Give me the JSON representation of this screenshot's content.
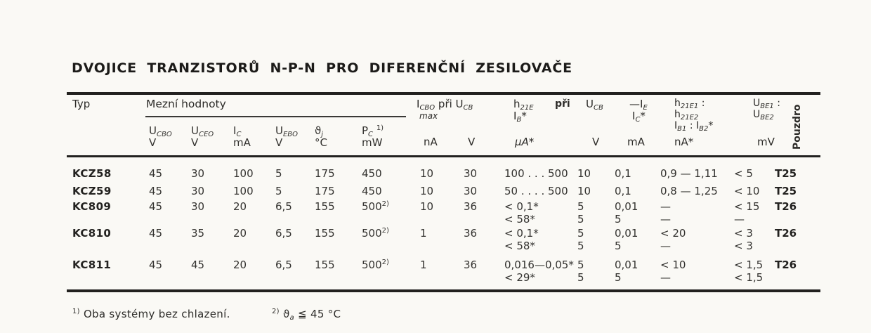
{
  "title": "DVOJICE TRANZISTORŮ N-P-N PRO DIFERENČNÍ ZESILOVAČE",
  "colors": {
    "paper": "#faf9f5",
    "ink": "#33322f",
    "rule": "#22211f"
  },
  "table": {
    "header": {
      "typ": "Typ",
      "mezni_hodnoty": "Mezní hodnoty",
      "limits": [
        {
          "sym": "U~CBO~",
          "unit": "V"
        },
        {
          "sym": "U~CEO~",
          "unit": "V"
        },
        {
          "sym": "I~C~",
          "unit": "mA"
        },
        {
          "sym": "U~EBO~",
          "unit": "V"
        },
        {
          "sym": "ϑ~j~",
          "unit": "°C"
        },
        {
          "sym": "P~C~ ^1)^",
          "unit": "mW"
        }
      ],
      "icbo": {
        "label": "I~CBO~ při U~CB~",
        "sub": "max",
        "unit_na": "nA",
        "unit_v": "V"
      },
      "h21e": {
        "label": "h~21E~",
        "sub": "I~B~*",
        "pri": "při",
        "ucb": "U~CB~",
        "unit_ua": "μA*",
        "unit_v": "V"
      },
      "ie": {
        "label": "—I~E~",
        "sub": "I~C~*",
        "unit": "mA"
      },
      "ratio": {
        "l1": "h~21E1~ :",
        "l2": "h~21E2~",
        "l3": "I~B1~ : I~B2~*",
        "unit": "nA*"
      },
      "ube": {
        "l1": "U~BE1~ :",
        "l2": "U~BE2~",
        "unit": "mV"
      },
      "pouzdro": "Pouzdro"
    },
    "rows": [
      {
        "typ": "KCZ58",
        "ucbo": "45",
        "uceo": "30",
        "ic": "100",
        "uebo": "5",
        "thetaj": "175",
        "pc": "450",
        "icbo_na": "10",
        "icbo_v": "30",
        "h21e": [
          "100 . . . 500"
        ],
        "ucb": [
          "10"
        ],
        "ie": [
          "0,1"
        ],
        "ratio": [
          "0,9 — 1,11"
        ],
        "ube": [
          "< 5"
        ],
        "pouzdro": "T25"
      },
      {
        "typ": "KCZ59",
        "ucbo": "45",
        "uceo": "30",
        "ic": "100",
        "uebo": "5",
        "thetaj": "175",
        "pc": "450",
        "icbo_na": "10",
        "icbo_v": "30",
        "h21e": [
          "50 . . . . 500"
        ],
        "ucb": [
          "10"
        ],
        "ie": [
          "0,1"
        ],
        "ratio": [
          "0,8 — 1,25"
        ],
        "ube": [
          "< 10"
        ],
        "pouzdro": "T25"
      },
      {
        "typ": "KC809",
        "ucbo": "45",
        "uceo": "30",
        "ic": "20",
        "uebo": "6,5",
        "thetaj": "155",
        "pc": "500^2)^",
        "icbo_na": "10",
        "icbo_v": "36",
        "h21e": [
          "< 0,1*",
          "< 58*"
        ],
        "ucb": [
          "5",
          "5"
        ],
        "ie": [
          "0,01",
          "5"
        ],
        "ratio": [
          "—",
          "—"
        ],
        "ube": [
          "< 15",
          "—"
        ],
        "pouzdro": "T26"
      },
      {
        "typ": "KC810",
        "ucbo": "45",
        "uceo": "35",
        "ic": "20",
        "uebo": "6,5",
        "thetaj": "155",
        "pc": "500^2)^",
        "icbo_na": "1",
        "icbo_v": "36",
        "h21e": [
          "< 0,1*",
          "< 58*"
        ],
        "ucb": [
          "5",
          "5"
        ],
        "ie": [
          "0,01",
          "5"
        ],
        "ratio": [
          "< 20",
          "—"
        ],
        "ube": [
          "< 3",
          "< 3"
        ],
        "pouzdro": "T26"
      },
      {
        "typ": "KC811",
        "ucbo": "45",
        "uceo": "45",
        "ic": "20",
        "uebo": "6,5",
        "thetaj": "155",
        "pc": "500^2)^",
        "icbo_na": "1",
        "icbo_v": "36",
        "h21e": [
          "0,016—0,05*",
          "< 29*"
        ],
        "ucb": [
          "5",
          "5"
        ],
        "ie": [
          "0,01",
          "5"
        ],
        "ratio": [
          "< 10",
          "—"
        ],
        "ube": [
          "< 1,5",
          "< 1,5"
        ],
        "pouzdro": "T26"
      }
    ]
  },
  "footnotes": {
    "fn1": "^1)^ Oba systémy bez chlazení.",
    "fn2": "^2)^ ϑ~a~ ≦ 45 °C"
  }
}
